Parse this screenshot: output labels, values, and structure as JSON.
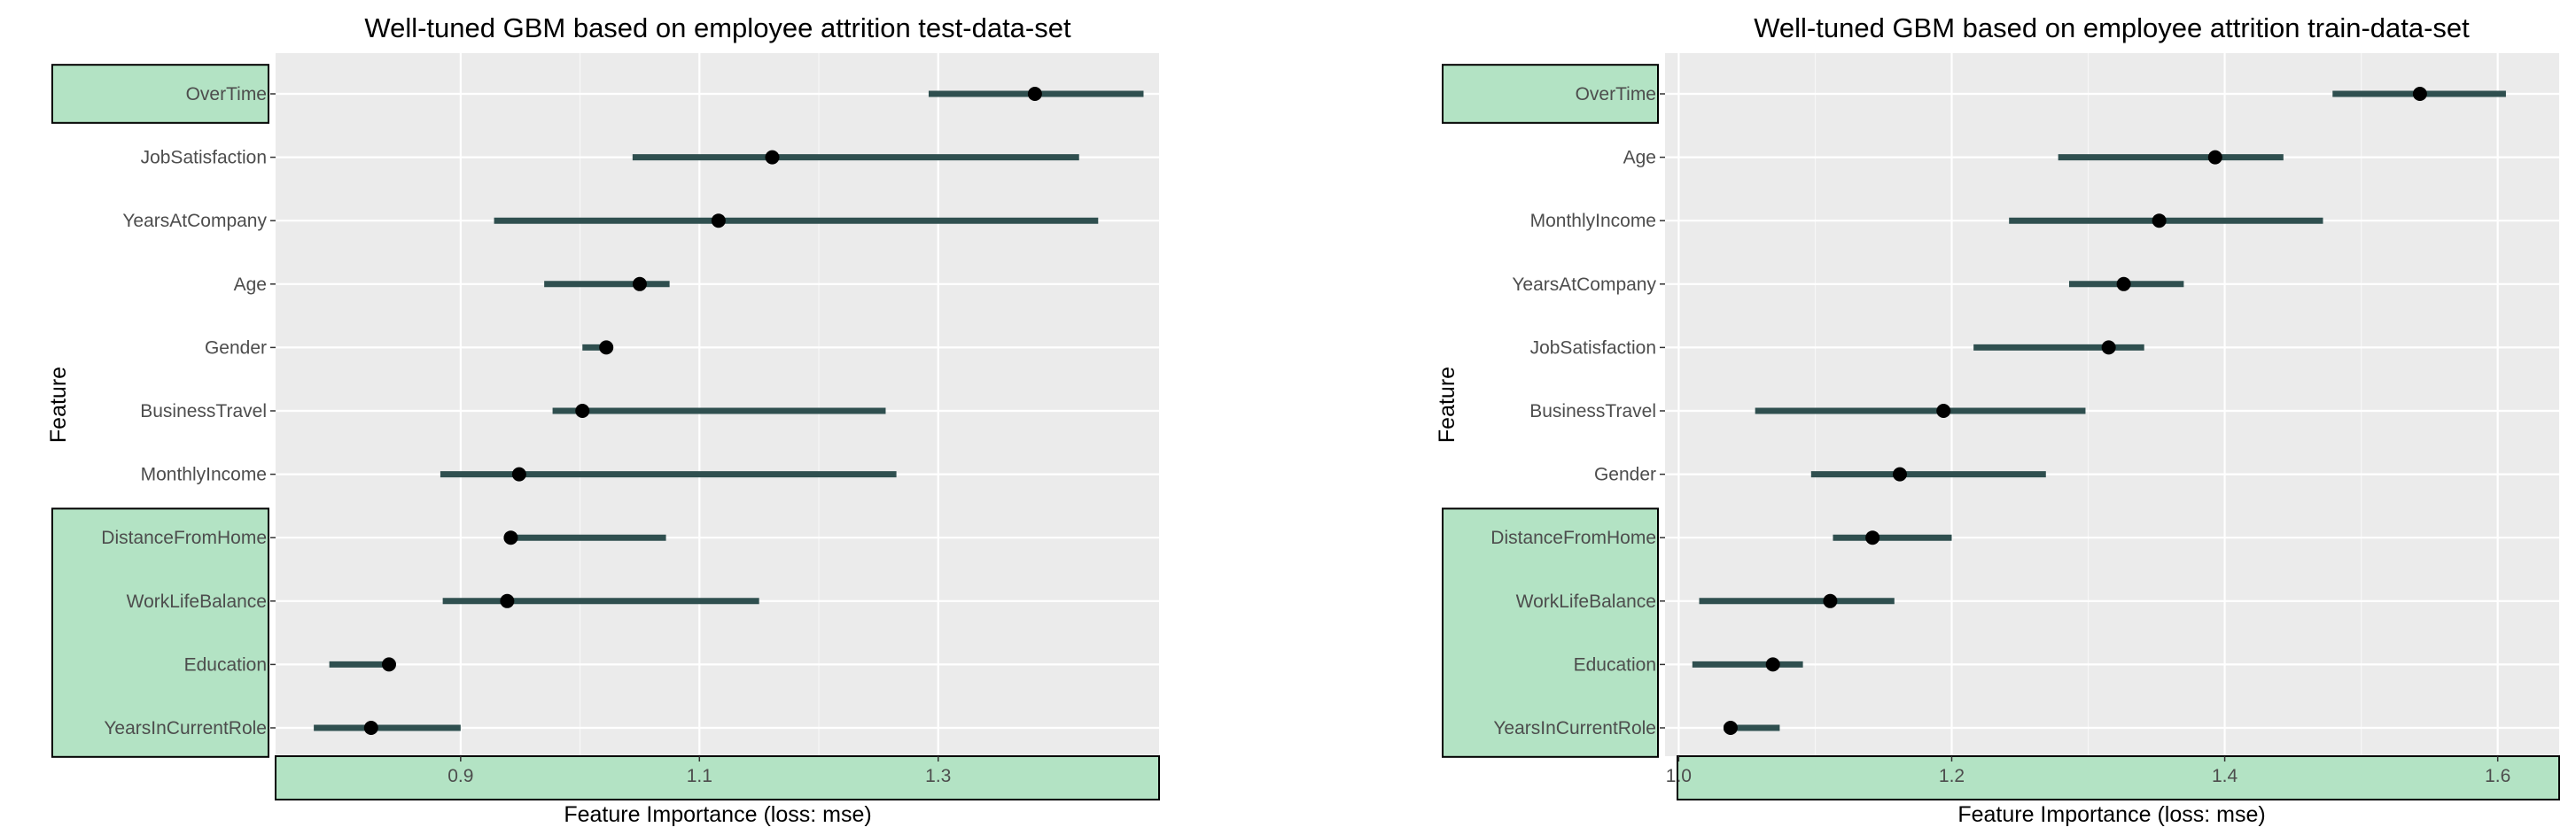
{
  "colors": {
    "panel_bg": "#ebebeb",
    "grid": "#ffffff",
    "interval": "#2f4f4f",
    "point": "#000000",
    "highlight": "#b3e3c4",
    "highlight_border": "#000000",
    "axis_text": "#4d4d4d"
  },
  "chart_data": [
    {
      "type": "dot-interval",
      "title": "Well-tuned GBM based on employee attrition test-data-set",
      "xlabel": "Feature Importance (loss: mse)",
      "ylabel": "Feature",
      "xlim": [
        0.745,
        1.485
      ],
      "xticks": [
        0.9,
        1.1,
        1.3
      ],
      "xtick_labels": [
        "0.9",
        "1.1",
        "1.3"
      ],
      "features": [
        "OverTime",
        "JobSatisfaction",
        "YearsAtCompany",
        "Age",
        "Gender",
        "BusinessTravel",
        "MonthlyIncome",
        "DistanceFromHome",
        "WorkLifeBalance",
        "Education",
        "YearsInCurrentRole"
      ],
      "importance": [
        1.381,
        1.161,
        1.116,
        1.05,
        1.022,
        1.002,
        0.949,
        0.942,
        0.939,
        0.84,
        0.825
      ],
      "lower": [
        1.292,
        1.044,
        0.928,
        0.97,
        1.002,
        0.977,
        0.883,
        0.937,
        0.885,
        0.79,
        0.777
      ],
      "upper": [
        1.472,
        1.418,
        1.434,
        1.075,
        1.025,
        1.256,
        1.265,
        1.072,
        1.15,
        0.845,
        0.9
      ],
      "highlighted_features": [
        "OverTime",
        "DistanceFromHome",
        "WorkLifeBalance",
        "Education",
        "YearsInCurrentRole"
      ],
      "x_axis_highlighted": true
    },
    {
      "type": "dot-interval",
      "title": "Well-tuned GBM based on employee attrition train-data-set",
      "xlabel": "Feature Importance (loss: mse)",
      "ylabel": "Feature",
      "xlim": [
        0.99,
        1.645
      ],
      "xticks": [
        1.0,
        1.2,
        1.4,
        1.6
      ],
      "xtick_labels": [
        "1.0",
        "1.2",
        "1.4",
        "1.6"
      ],
      "features": [
        "OverTime",
        "Age",
        "MonthlyIncome",
        "YearsAtCompany",
        "JobSatisfaction",
        "BusinessTravel",
        "Gender",
        "DistanceFromHome",
        "WorkLifeBalance",
        "Education",
        "YearsInCurrentRole"
      ],
      "importance": [
        1.543,
        1.393,
        1.352,
        1.326,
        1.315,
        1.194,
        1.162,
        1.142,
        1.111,
        1.069,
        1.038
      ],
      "lower": [
        1.479,
        1.278,
        1.242,
        1.286,
        1.216,
        1.056,
        1.097,
        1.113,
        1.015,
        1.01,
        1.033
      ],
      "upper": [
        1.606,
        1.443,
        1.472,
        1.37,
        1.341,
        1.298,
        1.269,
        1.2,
        1.158,
        1.091,
        1.074
      ],
      "highlighted_features": [
        "DistanceFromHome",
        "WorkLifeBalance",
        "Education",
        "YearsInCurrentRole",
        "OverTime"
      ],
      "x_axis_highlighted": true
    }
  ]
}
